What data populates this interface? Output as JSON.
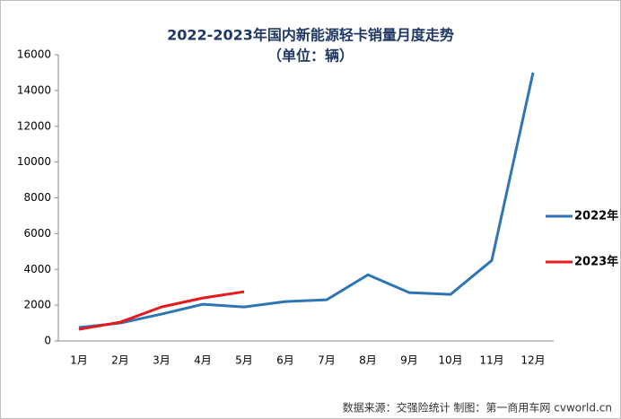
{
  "chart_data": {
    "type": "line",
    "title": "2022-2023年国内新能源轻卡销量月度走势",
    "subtitle": "（单位：辆）",
    "source": "数据来源：交强险统计   制图：第一商用车网 cvworld.cn",
    "categories": [
      "1月",
      "2月",
      "3月",
      "4月",
      "5月",
      "6月",
      "7月",
      "8月",
      "9月",
      "10月",
      "11月",
      "12月"
    ],
    "series": [
      {
        "name": "2022年",
        "color": "#2e75b6",
        "values": [
          750,
          1000,
          1500,
          2050,
          1900,
          2200,
          2300,
          3700,
          2700,
          2600,
          4500,
          15000
        ]
      },
      {
        "name": "2023年",
        "color": "#e8181c",
        "values": [
          650,
          1050,
          1900,
          2400,
          2750,
          null,
          null,
          null,
          null,
          null,
          null,
          null
        ]
      }
    ],
    "ylim": [
      0,
      16000
    ],
    "yticks": [
      0,
      2000,
      4000,
      6000,
      8000,
      10000,
      12000,
      14000,
      16000
    ],
    "grid": false,
    "legend": "right"
  }
}
